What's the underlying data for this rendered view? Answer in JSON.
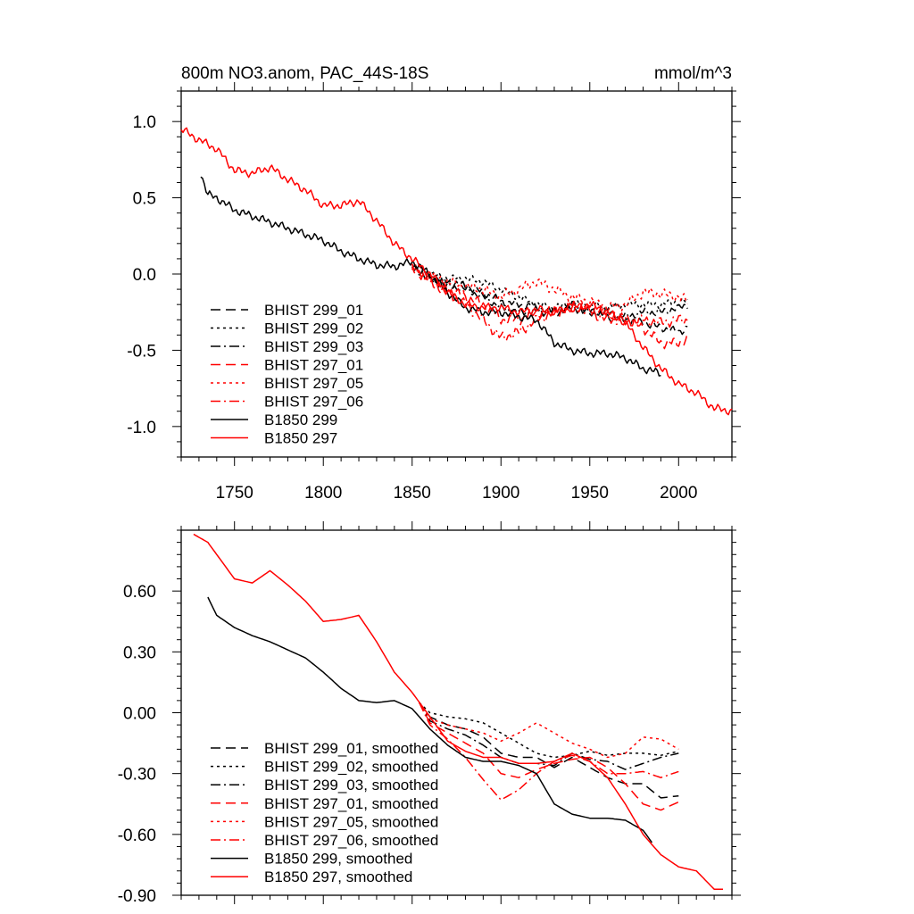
{
  "chart_data": [
    {
      "type": "line",
      "title": "800m NO3.anom, PAC_44S-18S",
      "units": "mmol/m^3",
      "xlim": [
        1720,
        2030
      ],
      "ylim": [
        -1.2,
        1.2
      ],
      "x_ticks": [
        1750,
        1800,
        1850,
        1900,
        1950,
        2000
      ],
      "x_tick_labels": [
        "1750",
        "1800",
        "1850",
        "1900",
        "1950",
        "2000"
      ],
      "y_ticks": [
        -1.0,
        -0.5,
        0.0,
        0.5,
        1.0
      ],
      "y_tick_labels": [
        "-1.0",
        "-0.5",
        "0.0",
        "0.5",
        "1.0"
      ],
      "x_minor_step": 10,
      "y_minor_step": 0.1,
      "legend_position": "bottom-left",
      "series": [
        {
          "name": "BHIST 299_01",
          "color": "#000000",
          "dash": "dashed",
          "x": [
            1850,
            1860,
            1870,
            1880,
            1890,
            1900,
            1910,
            1920,
            1930,
            1940,
            1950,
            1960,
            1970,
            1980,
            1990,
            2000,
            2005
          ],
          "y": [
            0.05,
            -0.02,
            -0.05,
            -0.08,
            -0.12,
            -0.18,
            -0.2,
            -0.22,
            -0.25,
            -0.22,
            -0.25,
            -0.28,
            -0.3,
            -0.32,
            -0.35,
            -0.38,
            -0.35
          ],
          "noise": 0.03
        },
        {
          "name": "BHIST 299_02",
          "color": "#000000",
          "dash": "dotted",
          "x": [
            1850,
            1860,
            1870,
            1880,
            1890,
            1900,
            1910,
            1920,
            1930,
            1940,
            1950,
            1960,
            1970,
            1980,
            1990,
            2000,
            2005
          ],
          "y": [
            0.05,
            0.0,
            -0.03,
            -0.03,
            -0.05,
            -0.1,
            -0.15,
            -0.2,
            -0.22,
            -0.2,
            -0.2,
            -0.22,
            -0.2,
            -0.2,
            -0.2,
            -0.18,
            -0.18
          ],
          "noise": 0.03
        },
        {
          "name": "BHIST 299_03",
          "color": "#000000",
          "dash": "dashdot",
          "x": [
            1850,
            1860,
            1870,
            1880,
            1890,
            1900,
            1910,
            1920,
            1930,
            1940,
            1950,
            1960,
            1970,
            1980,
            1990,
            2000,
            2005
          ],
          "y": [
            0.05,
            -0.03,
            -0.08,
            -0.1,
            -0.15,
            -0.22,
            -0.25,
            -0.25,
            -0.25,
            -0.2,
            -0.25,
            -0.25,
            -0.28,
            -0.25,
            -0.25,
            -0.22,
            -0.2
          ],
          "noise": 0.03
        },
        {
          "name": "BHIST 297_01",
          "color": "#ff0000",
          "dash": "dashed",
          "x": [
            1850,
            1860,
            1870,
            1880,
            1890,
            1900,
            1910,
            1920,
            1930,
            1940,
            1950,
            1960,
            1970,
            1980,
            1990,
            2000,
            2005
          ],
          "y": [
            0.05,
            -0.05,
            -0.1,
            -0.15,
            -0.2,
            -0.3,
            -0.3,
            -0.25,
            -0.25,
            -0.22,
            -0.22,
            -0.25,
            -0.3,
            -0.35,
            -0.45,
            -0.45,
            -0.42
          ],
          "noise": 0.04
        },
        {
          "name": "BHIST 297_05",
          "color": "#ff0000",
          "dash": "dotted",
          "x": [
            1850,
            1860,
            1870,
            1880,
            1890,
            1900,
            1910,
            1920,
            1930,
            1940,
            1950,
            1960,
            1970,
            1980,
            1990,
            2000,
            2005
          ],
          "y": [
            0.05,
            -0.02,
            -0.05,
            -0.08,
            -0.1,
            -0.15,
            -0.1,
            -0.05,
            -0.1,
            -0.15,
            -0.18,
            -0.22,
            -0.2,
            -0.12,
            -0.13,
            -0.15,
            -0.18
          ],
          "noise": 0.04
        },
        {
          "name": "BHIST 297_06",
          "color": "#ff0000",
          "dash": "dashdot",
          "x": [
            1850,
            1860,
            1870,
            1880,
            1890,
            1900,
            1910,
            1920,
            1930,
            1940,
            1950,
            1960,
            1970,
            1980,
            1990,
            2000,
            2005
          ],
          "y": [
            0.05,
            -0.05,
            -0.12,
            -0.2,
            -0.3,
            -0.42,
            -0.38,
            -0.3,
            -0.25,
            -0.2,
            -0.25,
            -0.3,
            -0.3,
            -0.3,
            -0.32,
            -0.3,
            -0.3
          ],
          "noise": 0.04
        },
        {
          "name": "B1850 299",
          "color": "#000000",
          "dash": "solid",
          "x": [
            1731,
            1735,
            1740,
            1750,
            1760,
            1770,
            1780,
            1790,
            1800,
            1810,
            1820,
            1830,
            1840,
            1850,
            1860,
            1870,
            1880,
            1890,
            1900,
            1910,
            1920,
            1930,
            1940,
            1950,
            1960,
            1970,
            1980,
            1990
          ],
          "y": [
            0.66,
            0.52,
            0.5,
            0.42,
            0.38,
            0.34,
            0.3,
            0.26,
            0.22,
            0.15,
            0.1,
            0.06,
            0.05,
            0.08,
            0.0,
            -0.12,
            -0.22,
            -0.25,
            -0.25,
            -0.28,
            -0.3,
            -0.45,
            -0.5,
            -0.52,
            -0.52,
            -0.55,
            -0.62,
            -0.65
          ],
          "noise": 0.03
        },
        {
          "name": "B1850 297",
          "color": "#ff0000",
          "dash": "solid",
          "x": [
            1720,
            1730,
            1740,
            1750,
            1760,
            1770,
            1780,
            1790,
            1800,
            1810,
            1820,
            1830,
            1840,
            1850,
            1860,
            1870,
            1880,
            1890,
            1900,
            1910,
            1920,
            1930,
            1940,
            1950,
            1960,
            1970,
            1980,
            1990,
            2000,
            2010,
            2020,
            2030
          ],
          "y": [
            0.95,
            0.88,
            0.82,
            0.68,
            0.66,
            0.7,
            0.62,
            0.55,
            0.45,
            0.45,
            0.48,
            0.35,
            0.2,
            0.1,
            0.0,
            -0.12,
            -0.2,
            -0.22,
            -0.22,
            -0.25,
            -0.23,
            -0.25,
            -0.22,
            -0.2,
            -0.25,
            -0.32,
            -0.48,
            -0.62,
            -0.72,
            -0.78,
            -0.88,
            -0.9
          ],
          "noise": 0.03
        }
      ]
    },
    {
      "type": "line",
      "xlim": [
        1720,
        2030
      ],
      "ylim": [
        -0.9,
        0.9
      ],
      "x_ticks": [
        1750,
        1800,
        1850,
        1900,
        1950,
        2000
      ],
      "y_ticks": [
        -0.9,
        -0.6,
        -0.3,
        0.0,
        0.3,
        0.6
      ],
      "y_tick_labels": [
        "-0.90",
        "-0.60",
        "-0.30",
        "0.00",
        "0.30",
        "0.60"
      ],
      "x_minor_step": 10,
      "y_minor_step": 0.06,
      "legend_position": "bottom-left",
      "series": [
        {
          "name": "BHIST 299_01, smoothed",
          "color": "#000000",
          "dash": "dashed",
          "x": [
            1854,
            1860,
            1870,
            1880,
            1890,
            1900,
            1910,
            1920,
            1930,
            1940,
            1950,
            1960,
            1970,
            1980,
            1990,
            2000
          ],
          "y": [
            0.05,
            -0.02,
            -0.06,
            -0.08,
            -0.12,
            -0.2,
            -0.22,
            -0.22,
            -0.27,
            -0.22,
            -0.27,
            -0.32,
            -0.35,
            -0.35,
            -0.42,
            -0.41
          ]
        },
        {
          "name": "BHIST 299_02, smoothed",
          "color": "#000000",
          "dash": "dotted",
          "x": [
            1854,
            1860,
            1870,
            1880,
            1890,
            1900,
            1910,
            1920,
            1930,
            1940,
            1950,
            1960,
            1970,
            1980,
            1990,
            2000
          ],
          "y": [
            0.05,
            0.0,
            -0.02,
            -0.03,
            -0.05,
            -0.1,
            -0.15,
            -0.2,
            -0.22,
            -0.21,
            -0.19,
            -0.21,
            -0.2,
            -0.2,
            -0.21,
            -0.19
          ]
        },
        {
          "name": "BHIST 299_03, smoothed",
          "color": "#000000",
          "dash": "dashdot",
          "x": [
            1854,
            1860,
            1870,
            1880,
            1890,
            1900,
            1910,
            1920,
            1930,
            1940,
            1950,
            1960,
            1970,
            1980,
            1990,
            2000
          ],
          "y": [
            0.05,
            -0.04,
            -0.08,
            -0.11,
            -0.16,
            -0.22,
            -0.25,
            -0.25,
            -0.26,
            -0.2,
            -0.23,
            -0.24,
            -0.28,
            -0.25,
            -0.22,
            -0.2
          ]
        },
        {
          "name": "BHIST 297_01, smoothed",
          "color": "#ff0000",
          "dash": "dashed",
          "x": [
            1854,
            1860,
            1870,
            1880,
            1890,
            1900,
            1910,
            1920,
            1930,
            1940,
            1950,
            1960,
            1970,
            1980,
            1990,
            2000
          ],
          "y": [
            0.05,
            -0.05,
            -0.1,
            -0.15,
            -0.2,
            -0.3,
            -0.32,
            -0.28,
            -0.25,
            -0.23,
            -0.22,
            -0.27,
            -0.35,
            -0.45,
            -0.48,
            -0.44
          ]
        },
        {
          "name": "BHIST 297_05, smoothed",
          "color": "#ff0000",
          "dash": "dotted",
          "x": [
            1854,
            1860,
            1870,
            1880,
            1890,
            1900,
            1910,
            1920,
            1930,
            1940,
            1950,
            1960,
            1970,
            1980,
            1990,
            2000
          ],
          "y": [
            0.05,
            -0.03,
            -0.06,
            -0.08,
            -0.1,
            -0.14,
            -0.1,
            -0.05,
            -0.1,
            -0.15,
            -0.18,
            -0.22,
            -0.2,
            -0.12,
            -0.13,
            -0.18
          ]
        },
        {
          "name": "BHIST 297_06, smoothed",
          "color": "#ff0000",
          "dash": "dashdot",
          "x": [
            1854,
            1860,
            1870,
            1880,
            1890,
            1900,
            1910,
            1920,
            1930,
            1940,
            1950,
            1960,
            1970,
            1980,
            1990,
            2000
          ],
          "y": [
            0.05,
            -0.06,
            -0.13,
            -0.22,
            -0.33,
            -0.43,
            -0.38,
            -0.3,
            -0.24,
            -0.21,
            -0.24,
            -0.3,
            -0.3,
            -0.29,
            -0.32,
            -0.29
          ]
        },
        {
          "name": "B1850 299, smoothed",
          "color": "#000000",
          "dash": "solid",
          "x": [
            1735,
            1740,
            1750,
            1760,
            1770,
            1780,
            1790,
            1800,
            1810,
            1820,
            1830,
            1840,
            1850,
            1860,
            1870,
            1880,
            1890,
            1900,
            1910,
            1920,
            1930,
            1940,
            1950,
            1960,
            1970,
            1980,
            1985
          ],
          "y": [
            0.57,
            0.48,
            0.42,
            0.38,
            0.35,
            0.31,
            0.27,
            0.2,
            0.12,
            0.06,
            0.05,
            0.06,
            0.02,
            -0.08,
            -0.16,
            -0.22,
            -0.24,
            -0.24,
            -0.26,
            -0.3,
            -0.45,
            -0.5,
            -0.52,
            -0.52,
            -0.53,
            -0.58,
            -0.64
          ]
        },
        {
          "name": "B1850 297, smoothed",
          "color": "#ff0000",
          "dash": "solid",
          "x": [
            1727,
            1735,
            1740,
            1750,
            1760,
            1770,
            1780,
            1790,
            1800,
            1810,
            1820,
            1830,
            1840,
            1850,
            1860,
            1870,
            1880,
            1890,
            1900,
            1910,
            1920,
            1930,
            1940,
            1950,
            1960,
            1970,
            1980,
            1990,
            2000,
            2010,
            2020,
            2025
          ],
          "y": [
            0.88,
            0.84,
            0.78,
            0.66,
            0.64,
            0.7,
            0.63,
            0.55,
            0.45,
            0.46,
            0.48,
            0.35,
            0.2,
            0.1,
            -0.02,
            -0.14,
            -0.19,
            -0.22,
            -0.22,
            -0.25,
            -0.25,
            -0.24,
            -0.2,
            -0.24,
            -0.32,
            -0.45,
            -0.6,
            -0.7,
            -0.76,
            -0.78,
            -0.87,
            -0.87
          ]
        }
      ]
    }
  ]
}
